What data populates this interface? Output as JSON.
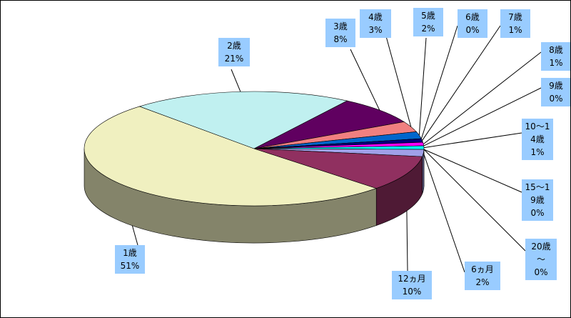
{
  "chart_data": {
    "type": "pie",
    "categories": [
      "1歳",
      "2歳",
      "3歳",
      "4歳",
      "5歳",
      "6歳",
      "7歳",
      "8歳",
      "9歳",
      "10〜14歳",
      "15〜19歳",
      "20歳〜",
      "6ヵ月",
      "12ヵ月"
    ],
    "values": [
      51,
      21,
      8,
      3,
      2,
      0,
      1,
      1,
      0,
      1,
      0,
      0,
      2,
      10
    ],
    "value_labels": [
      "51%",
      "21%",
      "8%",
      "3%",
      "2%",
      "0%",
      "1%",
      "1%",
      "0%",
      "1%",
      "0%",
      "0%",
      "2%",
      "10%"
    ],
    "colors": [
      "#f0f0c0",
      "#c0f0f0",
      "#600060",
      "#f08080",
      "#0066cc",
      "#c0c0ff",
      "#000080",
      "#ff00ff",
      "#ffff00",
      "#00ffff",
      "#800080",
      "#800000",
      "#a0a0e8",
      "#903060"
    ]
  }
}
